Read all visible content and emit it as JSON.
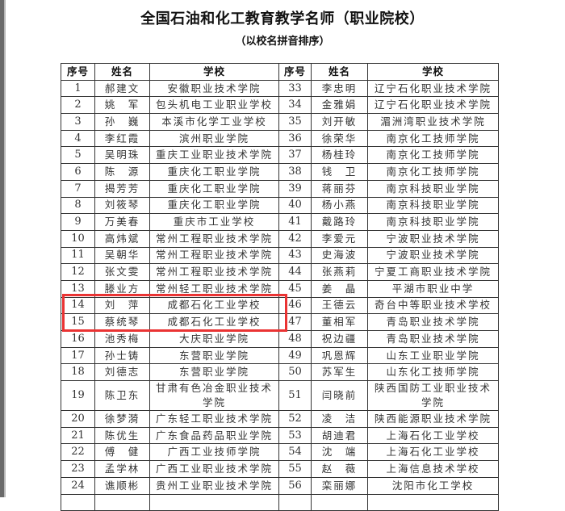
{
  "title": "全国石油和化工教育教学名师（职业院校）",
  "subtitle": "（以校名拼音排序）",
  "headers": [
    "序号",
    "姓名",
    "学校",
    "序号",
    "姓名",
    "学校"
  ],
  "highlight_color": "#ea3333",
  "rows": [
    [
      [
        "1",
        "郝建文",
        "安徽职业技术学院"
      ],
      [
        "33",
        "李忠明",
        "辽宁石化职业技术学院"
      ]
    ],
    [
      [
        "2",
        "姚　军",
        "包头机电工业职业学校"
      ],
      [
        "34",
        "金雅娟",
        "辽宁石化职业技术学院"
      ]
    ],
    [
      [
        "3",
        "孙　巍",
        "本溪市化学工业学校"
      ],
      [
        "35",
        "刘开敏",
        "湄洲湾职业技术学院"
      ]
    ],
    [
      [
        "4",
        "李红霞",
        "滨州职业学院"
      ],
      [
        "36",
        "徐荣华",
        "南京化工技师学院"
      ]
    ],
    [
      [
        "5",
        "吴明珠",
        "重庆工业职业技术学院"
      ],
      [
        "37",
        "杨桂玲",
        "南京化工技师学院"
      ]
    ],
    [
      [
        "6",
        "陈　源",
        "重庆化工职业学院"
      ],
      [
        "38",
        "钱　卫",
        "南京化工技师学院"
      ]
    ],
    [
      [
        "7",
        "揭芳芳",
        "重庆化工职业学院"
      ],
      [
        "39",
        "蒋丽芬",
        "南京科技职业学院"
      ]
    ],
    [
      [
        "8",
        "刘筱琴",
        "重庆化工职业学院"
      ],
      [
        "40",
        "杨小燕",
        "南京科技职业学院"
      ]
    ],
    [
      [
        "9",
        "万美春",
        "重庆市工业学校"
      ],
      [
        "41",
        "戴路玲",
        "南京科技职业学院"
      ]
    ],
    [
      [
        "10",
        "高炜斌",
        "常州工程职业技术学院"
      ],
      [
        "42",
        "李爱元",
        "宁波职业技术学院"
      ]
    ],
    [
      [
        "11",
        "吴朝华",
        "常州工程职业技术学院"
      ],
      [
        "43",
        "史海波",
        "宁波职业技术学院"
      ]
    ],
    [
      [
        "12",
        "张文雯",
        "常州工程职业技术学院"
      ],
      [
        "44",
        "张燕莉",
        "宁夏工商职业技术学院"
      ]
    ],
    [
      [
        "13",
        "滕业方",
        "常州轻工职业技术学院"
      ],
      [
        "45",
        "姜　晶",
        "平湖市职业中学"
      ]
    ],
    [
      [
        "14",
        "刘　萍",
        "成都石化工业学校"
      ],
      [
        "46",
        "王德云",
        "奇台中等职业技术学校"
      ]
    ],
    [
      [
        "15",
        "蔡统琴",
        "成都石化工业学校"
      ],
      [
        "47",
        "董相军",
        "青岛职业技术学院"
      ]
    ],
    [
      [
        "16",
        "池秀梅",
        "大庆职业学院"
      ],
      [
        "48",
        "祝边疆",
        "青岛职业技术学院"
      ]
    ],
    [
      [
        "17",
        "孙士铸",
        "东营职业学院"
      ],
      [
        "49",
        "巩恩辉",
        "山东工业职业学院"
      ]
    ],
    [
      [
        "18",
        "刘德志",
        "东营职业学院"
      ],
      [
        "50",
        "苏军生",
        "山东化工技师学院"
      ]
    ],
    [
      [
        "19",
        "陈卫东",
        "甘肃有色冶金职业技术学院"
      ],
      [
        "51",
        "闫晓前",
        "陕西国防工业职业技术学院"
      ]
    ],
    [
      [
        "20",
        "徐梦漪",
        "广东轻工职业技术学院"
      ],
      [
        "52",
        "凌　洁",
        "陕西能源职业技术学院"
      ]
    ],
    [
      [
        "21",
        "陈优生",
        "广东食品药品职业学院"
      ],
      [
        "53",
        "胡迪君",
        "上海石化工业学校"
      ]
    ],
    [
      [
        "22",
        "傅　健",
        "广西工业技师学院"
      ],
      [
        "54",
        "沈　端",
        "上海石化工业学校"
      ]
    ],
    [
      [
        "23",
        "孟学林",
        "广西工业职业技术学院"
      ],
      [
        "55",
        "赵　薇",
        "上海信息技术学校"
      ]
    ],
    [
      [
        "24",
        "谯顺彬",
        "贵州工业职业技术学院"
      ],
      [
        "56",
        "栾丽娜",
        "沈阳市化工学校"
      ]
    ]
  ]
}
